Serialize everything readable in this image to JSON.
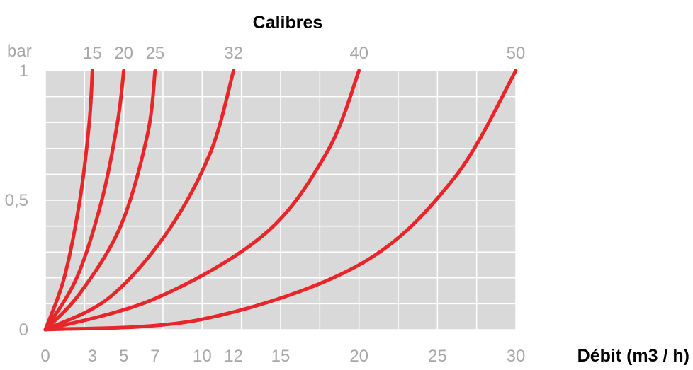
{
  "chart_data": {
    "type": "line",
    "title": "Calibres",
    "xlabel": "Débit (m3 / h)",
    "ylabel": "bar",
    "xlim": [
      0,
      30
    ],
    "ylim": [
      0,
      1
    ],
    "x_ticks": [
      {
        "value": 0,
        "label": "0"
      },
      {
        "value": 3,
        "label": "3"
      },
      {
        "value": 5,
        "label": "5"
      },
      {
        "value": 7,
        "label": "7"
      },
      {
        "value": 10,
        "label": "10"
      },
      {
        "value": 12,
        "label": "12"
      },
      {
        "value": 15,
        "label": "15"
      },
      {
        "value": 20,
        "label": "20"
      },
      {
        "value": 25,
        "label": "25"
      },
      {
        "value": 30,
        "label": "30"
      }
    ],
    "y_ticks": [
      {
        "value": 0,
        "label": "0"
      },
      {
        "value": 0.5,
        "label": "0,5"
      },
      {
        "value": 1,
        "label": "1"
      }
    ],
    "grid": true,
    "grid_color": "#d9d9da",
    "grid_line_color": "#ffffff",
    "line_color": "#e8262a",
    "series": [
      {
        "name": "15",
        "x": [
          0,
          1.2,
          2.2,
          2.8,
          3
        ],
        "y": [
          0,
          0.2,
          0.5,
          0.8,
          1
        ]
      },
      {
        "name": "20",
        "x": [
          0,
          2.0,
          3.6,
          4.6,
          5.0
        ],
        "y": [
          0,
          0.2,
          0.5,
          0.8,
          1
        ]
      },
      {
        "name": "25",
        "x": [
          0,
          2.2,
          4.8,
          6.5,
          7.0
        ],
        "y": [
          0,
          0.14,
          0.4,
          0.75,
          1
        ]
      },
      {
        "name": "32",
        "x": [
          0,
          4.0,
          7.7,
          10.5,
          12.0
        ],
        "y": [
          0,
          0.12,
          0.37,
          0.68,
          1
        ]
      },
      {
        "name": "40",
        "x": [
          0,
          7.0,
          14.0,
          18.0,
          20.0
        ],
        "y": [
          0,
          0.12,
          0.37,
          0.69,
          1
        ]
      },
      {
        "name": "50",
        "x": [
          0,
          10.0,
          20.0,
          26.0,
          30.0
        ],
        "y": [
          0,
          0.04,
          0.25,
          0.58,
          1
        ]
      }
    ]
  }
}
